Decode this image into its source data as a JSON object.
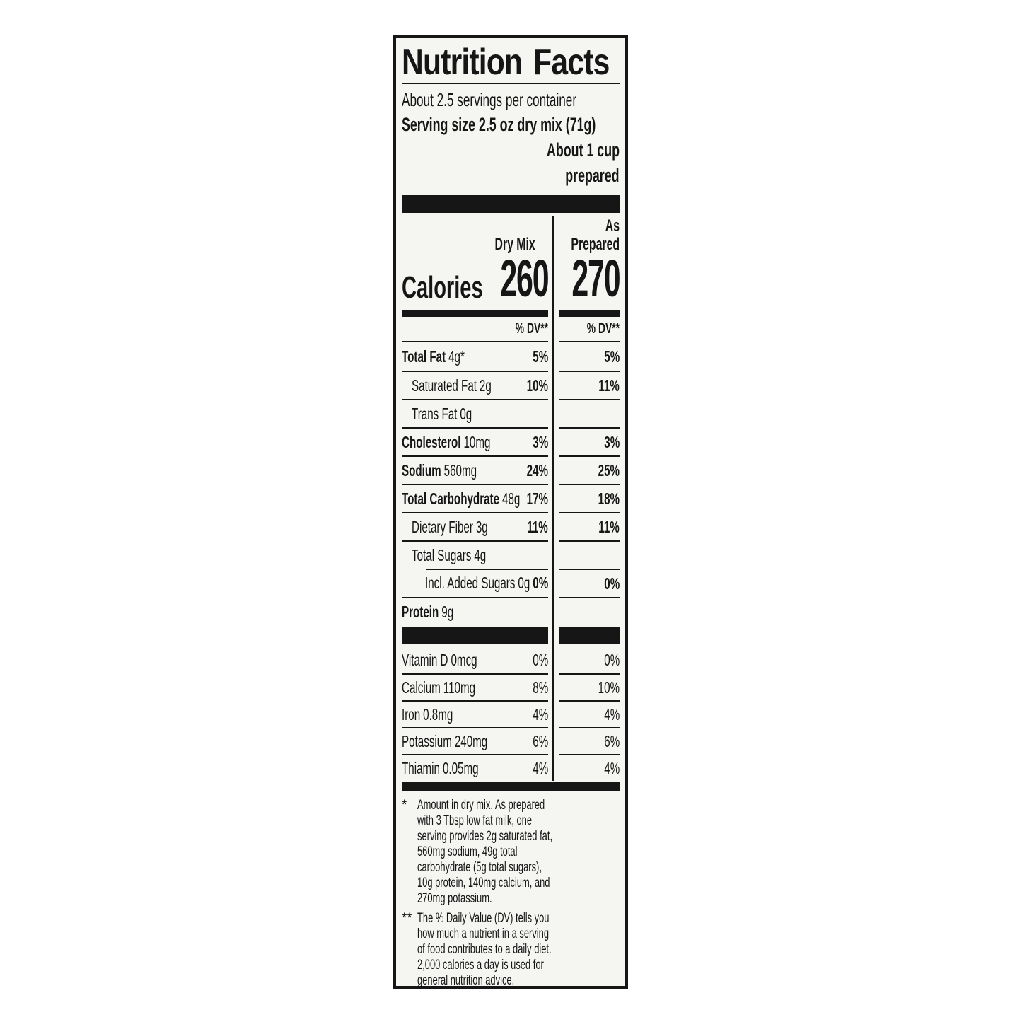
{
  "colors": {
    "ink": "#161616",
    "label-bg": "#f5f5f2",
    "page-bg": "#ffffff"
  },
  "label": {
    "title": "Nutrition Facts",
    "servings_per_container": "About 2.5 servings per container",
    "serving_size": "Serving size 2.5 oz dry mix (71g)",
    "serving_about_line1": "About 1 cup",
    "serving_about_line2": "prepared",
    "column_headers": {
      "dry_mix": "Dry Mix",
      "as_prepared_line1": "As",
      "as_prepared_line2": "Prepared"
    },
    "calories": {
      "label": "Calories",
      "dry_mix": "260",
      "as_prepared": "270"
    },
    "dv_header": {
      "dry_mix": "% DV**",
      "as_prepared": "% DV**"
    },
    "nutrients": [
      {
        "name": "Total Fat",
        "amount": "4g*",
        "bold": true,
        "indent": 0,
        "dv1": "5%",
        "dv2": "5%",
        "sep": "none"
      },
      {
        "name": "Saturated Fat",
        "amount": "2g",
        "bold": false,
        "indent": 1,
        "dv1": "10%",
        "dv2": "11%",
        "sep": "full"
      },
      {
        "name": "Trans Fat",
        "amount": "0g",
        "bold": false,
        "indent": 1,
        "dv1": "",
        "dv2": "",
        "sep": "full"
      },
      {
        "name": "Cholesterol",
        "amount": "10mg",
        "bold": true,
        "indent": 0,
        "dv1": "3%",
        "dv2": "3%",
        "sep": "full"
      },
      {
        "name": "Sodium",
        "amount": "560mg",
        "bold": true,
        "indent": 0,
        "dv1": "24%",
        "dv2": "25%",
        "sep": "full"
      },
      {
        "name": "Total Carbohydrate",
        "amount": "48g",
        "bold": true,
        "indent": 0,
        "dv1": "17%",
        "dv2": "18%",
        "sep": "full"
      },
      {
        "name": "Dietary Fiber",
        "amount": "3g",
        "bold": false,
        "indent": 1,
        "dv1": "11%",
        "dv2": "11%",
        "sep": "full"
      },
      {
        "name": "Total Sugars",
        "amount": "4g",
        "bold": false,
        "indent": 1,
        "dv1": "",
        "dv2": "",
        "sep": "full"
      },
      {
        "name": "Incl. Added Sugars",
        "amount": "0g",
        "bold": false,
        "indent": 2,
        "dv1": "0%",
        "dv2": "0%",
        "sep": "indent"
      },
      {
        "name": "Protein",
        "amount": "9g",
        "bold": true,
        "indent": 0,
        "dv1": "",
        "dv2": "",
        "sep": "full"
      }
    ],
    "vitamins": [
      {
        "name": "Vitamin D",
        "amount": "0mcg",
        "dv1": "0%",
        "dv2": "0%",
        "sep": "none"
      },
      {
        "name": "Calcium",
        "amount": "110mg",
        "dv1": "8%",
        "dv2": "10%",
        "sep": "full"
      },
      {
        "name": "Iron",
        "amount": "0.8mg",
        "dv1": "4%",
        "dv2": "4%",
        "sep": "full"
      },
      {
        "name": "Potassium",
        "amount": "240mg",
        "dv1": "6%",
        "dv2": "6%",
        "sep": "full"
      },
      {
        "name": "Thiamin",
        "amount": "0.05mg",
        "dv1": "4%",
        "dv2": "4%",
        "sep": "full"
      }
    ],
    "footnotes": [
      {
        "marker": "*",
        "text": "Amount in dry mix. As prepared with 3 Tbsp low fat milk, one serving provides 2g saturated fat, 560mg sodium, 49g total carbohydrate (5g total sugars), 10g protein, 140mg calcium, and 270mg potassium."
      },
      {
        "marker": "**",
        "text": "The % Daily Value (DV) tells you how much a nutrient in a serving of food contributes to a daily diet. 2,000 calories a day is used for general nutrition advice."
      }
    ]
  }
}
